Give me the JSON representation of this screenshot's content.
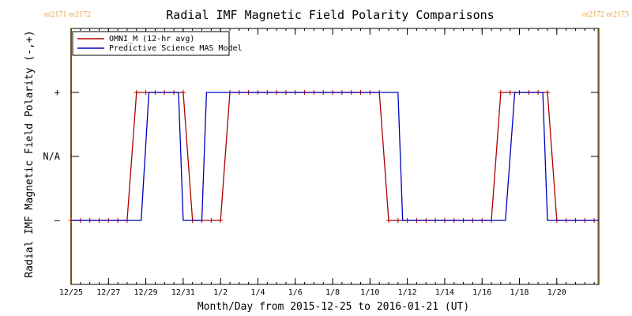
{
  "chart_data": {
    "type": "line",
    "title": "Radial IMF Magnetic Field Polarity Comparisons",
    "xlabel": "Month/Day from 2015-12-25 to 2016-01-21 (UT)",
    "ylabel": "Radial IMF Magnetic Field Polarity (-,+)",
    "x_range": [
      "2015-12-25T00:00",
      "2016-01-22T06:00"
    ],
    "y_range": [
      -2,
      2
    ],
    "x_ticks": [
      {
        "date": "2015-12-25T00:00",
        "label": "12/25"
      },
      {
        "date": "2015-12-27T00:00",
        "label": "12/27"
      },
      {
        "date": "2015-12-29T00:00",
        "label": "12/29"
      },
      {
        "date": "2015-12-31T00:00",
        "label": "12/31"
      },
      {
        "date": "2016-01-02T00:00",
        "label": "1/2"
      },
      {
        "date": "2016-01-04T00:00",
        "label": "1/4"
      },
      {
        "date": "2016-01-06T00:00",
        "label": "1/6"
      },
      {
        "date": "2016-01-08T00:00",
        "label": "1/8"
      },
      {
        "date": "2016-01-10T00:00",
        "label": "1/10"
      },
      {
        "date": "2016-01-12T00:00",
        "label": "1/12"
      },
      {
        "date": "2016-01-14T00:00",
        "label": "1/14"
      },
      {
        "date": "2016-01-16T00:00",
        "label": "1/16"
      },
      {
        "date": "2016-01-18T00:00",
        "label": "1/18"
      },
      {
        "date": "2016-01-20T00:00",
        "label": "1/20"
      }
    ],
    "y_ticks": [
      {
        "value": 1,
        "label": "+"
      },
      {
        "value": 0,
        "label": "N/A"
      },
      {
        "value": -1,
        "label": "–"
      }
    ],
    "rotation_markers": [
      {
        "date": "2015-12-25T00:00",
        "label": "or2171 or2172",
        "side": "top-left"
      },
      {
        "date": "2016-01-22T05:00",
        "label": "or2172 or2173",
        "side": "top-right"
      }
    ],
    "legend": {
      "placement": "top-left"
    },
    "colors": {
      "omni": "#b00000",
      "mas": "#0000c0",
      "rotation": "#f0a030",
      "axes": "#000000"
    },
    "series": [
      {
        "name": "OMNI_M (12-hr avg)",
        "key": "omni",
        "markers": true,
        "points": [
          [
            "2015-12-25T00:00",
            -1
          ],
          [
            "2015-12-25T12:00",
            -1
          ],
          [
            "2015-12-26T00:00",
            -1
          ],
          [
            "2015-12-26T12:00",
            -1
          ],
          [
            "2015-12-27T00:00",
            -1
          ],
          [
            "2015-12-27T12:00",
            -1
          ],
          [
            "2015-12-28T00:00",
            -1
          ],
          [
            "2015-12-28T12:00",
            1
          ],
          [
            "2015-12-29T00:00",
            1
          ],
          [
            "2015-12-29T12:00",
            1
          ],
          [
            "2015-12-30T00:00",
            1
          ],
          [
            "2015-12-30T12:00",
            1
          ],
          [
            "2015-12-31T00:00",
            1
          ],
          [
            "2015-12-31T12:00",
            -1
          ],
          [
            "2016-01-01T00:00",
            -1
          ],
          [
            "2016-01-01T12:00",
            -1
          ],
          [
            "2016-01-02T00:00",
            -1
          ],
          [
            "2016-01-02T12:00",
            1
          ],
          [
            "2016-01-03T00:00",
            1
          ],
          [
            "2016-01-03T12:00",
            1
          ],
          [
            "2016-01-04T00:00",
            1
          ],
          [
            "2016-01-04T12:00",
            1
          ],
          [
            "2016-01-05T00:00",
            1
          ],
          [
            "2016-01-05T12:00",
            1
          ],
          [
            "2016-01-06T00:00",
            1
          ],
          [
            "2016-01-06T12:00",
            1
          ],
          [
            "2016-01-07T00:00",
            1
          ],
          [
            "2016-01-07T12:00",
            1
          ],
          [
            "2016-01-08T00:00",
            1
          ],
          [
            "2016-01-08T12:00",
            1
          ],
          [
            "2016-01-09T00:00",
            1
          ],
          [
            "2016-01-09T12:00",
            1
          ],
          [
            "2016-01-10T00:00",
            1
          ],
          [
            "2016-01-10T12:00",
            1
          ],
          [
            "2016-01-11T00:00",
            -1
          ],
          [
            "2016-01-11T12:00",
            -1
          ],
          [
            "2016-01-12T00:00",
            -1
          ],
          [
            "2016-01-12T12:00",
            -1
          ],
          [
            "2016-01-13T00:00",
            -1
          ],
          [
            "2016-01-13T12:00",
            -1
          ],
          [
            "2016-01-14T00:00",
            -1
          ],
          [
            "2016-01-14T12:00",
            -1
          ],
          [
            "2016-01-15T00:00",
            -1
          ],
          [
            "2016-01-15T12:00",
            -1
          ],
          [
            "2016-01-16T00:00",
            -1
          ],
          [
            "2016-01-16T12:00",
            -1
          ],
          [
            "2016-01-17T00:00",
            1
          ],
          [
            "2016-01-17T12:00",
            1
          ],
          [
            "2016-01-18T00:00",
            1
          ],
          [
            "2016-01-18T12:00",
            1
          ],
          [
            "2016-01-19T00:00",
            1
          ],
          [
            "2016-01-19T12:00",
            1
          ],
          [
            "2016-01-20T00:00",
            -1
          ],
          [
            "2016-01-20T12:00",
            -1
          ],
          [
            "2016-01-21T00:00",
            -1
          ],
          [
            "2016-01-21T12:00",
            -1
          ],
          [
            "2016-01-22T00:00",
            -1
          ]
        ]
      },
      {
        "name": "Predictive Science MAS Model",
        "key": "mas",
        "markers": false,
        "points": [
          [
            "2015-12-25T00:00",
            -1
          ],
          [
            "2015-12-28T18:00",
            -1
          ],
          [
            "2015-12-29T04:00",
            1
          ],
          [
            "2015-12-30T18:00",
            1
          ],
          [
            "2015-12-31T00:00",
            -1
          ],
          [
            "2016-01-01T00:00",
            -1
          ],
          [
            "2016-01-01T06:00",
            1
          ],
          [
            "2016-01-11T12:00",
            1
          ],
          [
            "2016-01-11T18:00",
            -1
          ],
          [
            "2016-01-17T06:00",
            -1
          ],
          [
            "2016-01-17T18:00",
            1
          ],
          [
            "2016-01-19T06:00",
            1
          ],
          [
            "2016-01-19T12:00",
            -1
          ],
          [
            "2016-01-22T06:00",
            -1
          ]
        ]
      }
    ]
  }
}
